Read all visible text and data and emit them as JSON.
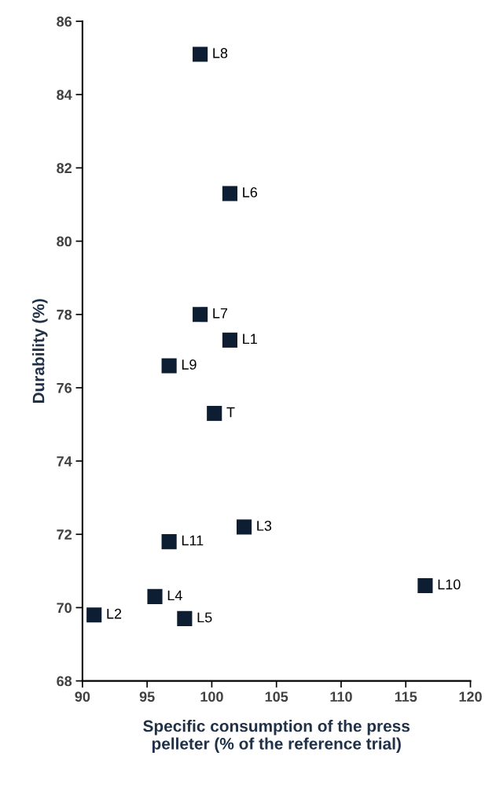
{
  "chart_data": {
    "type": "scatter",
    "xlabel": "Specific consumption of the press\npelleter (% of the reference trial)",
    "ylabel": "Durability (%)",
    "x": [
      101.4,
      90.9,
      102.5,
      95.6,
      97.9,
      101.4,
      99.1,
      99.1,
      96.7,
      116.5,
      96.7,
      100.2
    ],
    "values": [
      77.3,
      69.8,
      72.2,
      70.3,
      69.7,
      81.3,
      78.0,
      85.1,
      76.6,
      70.6,
      71.8,
      75.3
    ],
    "color": "#0e1e32",
    "marker": "square",
    "grid": false,
    "xlim": [
      90,
      120
    ],
    "xticks": [
      90,
      95,
      100,
      105,
      110,
      115,
      120
    ],
    "ylim": [
      68,
      86
    ],
    "yticks": [
      68,
      70,
      72,
      74,
      76,
      78,
      80,
      82,
      84,
      86
    ],
    "annotations": [
      {
        "text": "L1",
        "x": 101.4,
        "y": 77.3
      },
      {
        "text": "L2",
        "x": 90.9,
        "y": 69.8
      },
      {
        "text": "L3",
        "x": 102.5,
        "y": 72.2
      },
      {
        "text": "L4",
        "x": 95.6,
        "y": 70.3
      },
      {
        "text": "L5",
        "x": 97.9,
        "y": 69.7
      },
      {
        "text": "L6",
        "x": 101.4,
        "y": 81.3
      },
      {
        "text": "L7",
        "x": 99.1,
        "y": 78.0
      },
      {
        "text": "L8",
        "x": 99.1,
        "y": 85.1
      },
      {
        "text": "L9",
        "x": 96.7,
        "y": 76.6
      },
      {
        "text": "L10",
        "x": 116.5,
        "y": 70.6
      },
      {
        "text": "L11",
        "x": 96.7,
        "y": 71.8
      },
      {
        "text": "T",
        "x": 100.2,
        "y": 75.3
      }
    ]
  }
}
